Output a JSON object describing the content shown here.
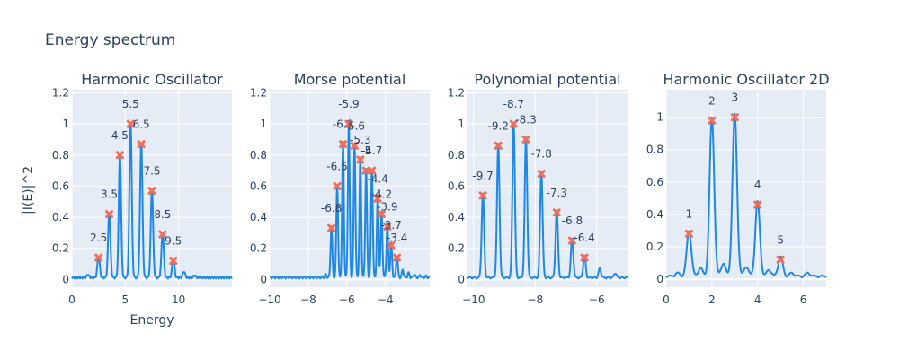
{
  "title": "Energy spectrum",
  "ylabel": "|I(E)|^2",
  "colors": {
    "plot_bg": "#e5ecf6",
    "line": "#1f88e5",
    "marker": "#ef6f5a",
    "text": "#2a3f5f",
    "grid": "#ffffff"
  },
  "chart_data": [
    {
      "type": "line",
      "title": "Harmonic Oscillator",
      "xlabel": "Energy",
      "xlim": [
        0,
        15
      ],
      "ylim": [
        -0.05,
        1.22
      ],
      "xticks": [
        0,
        5,
        10
      ],
      "yticks": [
        0,
        0.2,
        0.4,
        0.6,
        0.8,
        1,
        1.2
      ],
      "x_tick_labels": [
        "0",
        "5",
        "10"
      ],
      "y_tick_labels": [
        "0",
        "0.2",
        "0.4",
        "0.6",
        "0.8",
        "1",
        "1.2"
      ],
      "grid": true,
      "line_shape": {
        "type": "peaks",
        "width": 0.11,
        "baseline": 0.005,
        "ripple_amplitude": 0.01,
        "ripple_period": 0.25,
        "peaks": [
          [
            1.5,
            0.02
          ],
          [
            2.5,
            0.14
          ],
          [
            3.5,
            0.42
          ],
          [
            4.5,
            0.8
          ],
          [
            5.5,
            1.0
          ],
          [
            6.5,
            0.87
          ],
          [
            7.5,
            0.57
          ],
          [
            8.5,
            0.29
          ],
          [
            9.5,
            0.12
          ],
          [
            10.5,
            0.04
          ],
          [
            11.5,
            0.015
          ]
        ]
      },
      "peaks": [
        {
          "x": 2.5,
          "y": 0.14,
          "label": "2.5"
        },
        {
          "x": 3.5,
          "y": 0.42,
          "label": "3.5"
        },
        {
          "x": 4.5,
          "y": 0.8,
          "label": "4.5"
        },
        {
          "x": 5.5,
          "y": 1.0,
          "label": "5.5"
        },
        {
          "x": 6.5,
          "y": 0.87,
          "label": "6.5"
        },
        {
          "x": 7.5,
          "y": 0.57,
          "label": "7.5"
        },
        {
          "x": 8.5,
          "y": 0.29,
          "label": "8.5"
        },
        {
          "x": 9.5,
          "y": 0.12,
          "label": "9.5"
        }
      ]
    },
    {
      "type": "line",
      "title": "Morse potential",
      "xlabel": "",
      "xlim": [
        -10,
        -1.7
      ],
      "ylim": [
        -0.05,
        1.22
      ],
      "xticks": [
        -10,
        -8,
        -6,
        -4
      ],
      "yticks": [
        0,
        0.2,
        0.4,
        0.6,
        0.8,
        1,
        1.2
      ],
      "x_tick_labels": [
        "−10",
        "−8",
        "−6",
        "−4"
      ],
      "y_tick_labels": [
        "0",
        "0.2",
        "0.4",
        "0.6",
        "0.8",
        "1",
        "1.2"
      ],
      "grid": true,
      "line_shape": {
        "type": "peaks",
        "width": 0.045,
        "baseline": 0.005,
        "ripple_amplitude": 0.012,
        "ripple_period": 0.18,
        "peaks": [
          [
            -7.1,
            0.02
          ],
          [
            -6.8,
            0.33
          ],
          [
            -6.5,
            0.6
          ],
          [
            -6.2,
            0.87
          ],
          [
            -5.9,
            1.0
          ],
          [
            -5.6,
            0.86
          ],
          [
            -5.3,
            0.77
          ],
          [
            -5.0,
            0.7
          ],
          [
            -4.7,
            0.7
          ],
          [
            -4.4,
            0.52
          ],
          [
            -4.2,
            0.42
          ],
          [
            -3.9,
            0.34
          ],
          [
            -3.7,
            0.22
          ],
          [
            -3.4,
            0.14
          ],
          [
            -3.1,
            0.05
          ],
          [
            -2.8,
            0.03
          ],
          [
            -2.5,
            0.02
          ],
          [
            -2.2,
            0.015
          ],
          [
            -1.9,
            0.01
          ]
        ]
      },
      "peaks": [
        {
          "x": -6.8,
          "y": 0.33,
          "label": "-6.8"
        },
        {
          "x": -6.5,
          "y": 0.6,
          "label": "-6.5"
        },
        {
          "x": -6.2,
          "y": 0.87,
          "label": "-6.2"
        },
        {
          "x": -5.9,
          "y": 1.0,
          "label": "-5.9"
        },
        {
          "x": -5.6,
          "y": 0.86,
          "label": "-5.6"
        },
        {
          "x": -5.3,
          "y": 0.77,
          "label": "-5.3"
        },
        {
          "x": -5.0,
          "y": 0.7,
          "label": "-5"
        },
        {
          "x": -4.7,
          "y": 0.7,
          "label": "-4.7"
        },
        {
          "x": -4.4,
          "y": 0.52,
          "label": "-4.4"
        },
        {
          "x": -4.2,
          "y": 0.42,
          "label": "-4.2"
        },
        {
          "x": -3.9,
          "y": 0.34,
          "label": "-3.9"
        },
        {
          "x": -3.7,
          "y": 0.22,
          "label": "-3.7"
        },
        {
          "x": -3.4,
          "y": 0.14,
          "label": "-3.4"
        }
      ]
    },
    {
      "type": "line",
      "title": "Polynomial potential",
      "xlabel": "",
      "xlim": [
        -10.2,
        -5.0
      ],
      "ylim": [
        -0.05,
        1.22
      ],
      "xticks": [
        -10,
        -8,
        -6
      ],
      "yticks": [
        0,
        0.2,
        0.4,
        0.6,
        0.8,
        1,
        1.2
      ],
      "x_tick_labels": [
        "−10",
        "−8",
        "−6"
      ],
      "y_tick_labels": [
        "0",
        "0.2",
        "0.4",
        "0.6",
        "0.8",
        "1",
        "1.2"
      ],
      "grid": true,
      "line_shape": {
        "type": "peaks",
        "width": 0.04,
        "baseline": 0.005,
        "ripple_amplitude": 0.01,
        "ripple_period": 0.15,
        "peaks": [
          [
            -9.7,
            0.54
          ],
          [
            -9.2,
            0.86
          ],
          [
            -8.7,
            1.0
          ],
          [
            -8.3,
            0.9
          ],
          [
            -7.8,
            0.68
          ],
          [
            -7.3,
            0.43
          ],
          [
            -6.8,
            0.25
          ],
          [
            -6.4,
            0.14
          ],
          [
            -5.9,
            0.06
          ],
          [
            -5.4,
            0.03
          ]
        ]
      },
      "peaks": [
        {
          "x": -9.7,
          "y": 0.54,
          "label": "-9.7"
        },
        {
          "x": -9.2,
          "y": 0.86,
          "label": "-9.2"
        },
        {
          "x": -8.7,
          "y": 1.0,
          "label": "-8.7"
        },
        {
          "x": -8.3,
          "y": 0.9,
          "label": "-8.3"
        },
        {
          "x": -7.8,
          "y": 0.68,
          "label": "-7.8"
        },
        {
          "x": -7.3,
          "y": 0.43,
          "label": "-7.3"
        },
        {
          "x": -6.8,
          "y": 0.25,
          "label": "-6.8"
        },
        {
          "x": -6.4,
          "y": 0.14,
          "label": "-6.4"
        }
      ]
    },
    {
      "type": "line",
      "title": "Harmonic Oscillator 2D",
      "xlabel": "",
      "xlim": [
        0,
        7
      ],
      "ylim": [
        -0.05,
        1.17
      ],
      "xticks": [
        0,
        2,
        4,
        6
      ],
      "yticks": [
        0,
        0.2,
        0.4,
        0.6,
        0.8,
        1
      ],
      "x_tick_labels": [
        "0",
        "2",
        "4",
        "6"
      ],
      "y_tick_labels": [
        "0",
        "0.2",
        "0.4",
        "0.6",
        "0.8",
        "1"
      ],
      "grid": true,
      "line_shape": {
        "type": "peaks",
        "width": 0.1,
        "baseline": 0.01,
        "ripple_amplitude": 0.012,
        "ripple_period": 0.35,
        "peaks": [
          [
            0.5,
            0.02
          ],
          [
            1.0,
            0.28
          ],
          [
            1.5,
            0.05
          ],
          [
            2.0,
            0.98
          ],
          [
            2.5,
            0.08
          ],
          [
            3.0,
            1.0
          ],
          [
            3.5,
            0.06
          ],
          [
            4.0,
            0.46
          ],
          [
            4.5,
            0.04
          ],
          [
            5.0,
            0.12
          ],
          [
            5.5,
            0.02
          ],
          [
            6.2,
            0.02
          ]
        ]
      },
      "peaks": [
        {
          "x": 1.0,
          "y": 0.28,
          "label": "1"
        },
        {
          "x": 2.0,
          "y": 0.98,
          "label": "2"
        },
        {
          "x": 3.0,
          "y": 1.0,
          "label": "3"
        },
        {
          "x": 4.0,
          "y": 0.46,
          "label": "4"
        },
        {
          "x": 5.0,
          "y": 0.12,
          "label": "5"
        }
      ]
    }
  ]
}
